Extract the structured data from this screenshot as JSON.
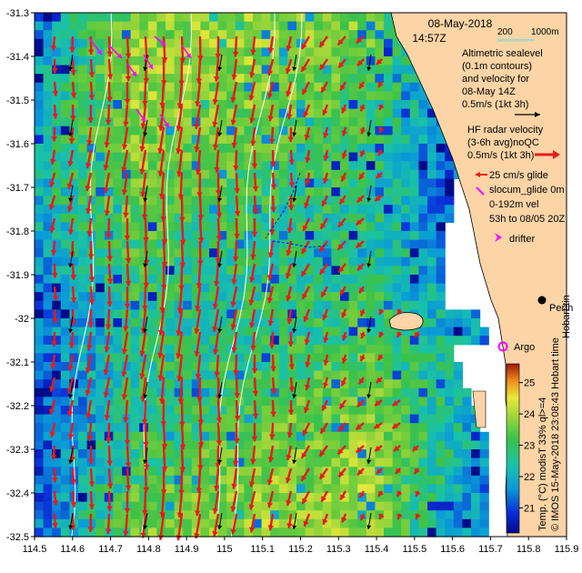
{
  "title": {
    "date": "08-May-2018",
    "time": "14:57Z"
  },
  "depth_legend": {
    "label_200": "200",
    "label_1000": "1000m",
    "color_200": "#ffffff",
    "color_1000": "#7fd6d6"
  },
  "legend": {
    "altimetric_lines": [
      "Altimetric sealevel",
      "(0.1m contours)",
      "and velocity for",
      "08-May 14Z",
      "0.5m/s (1kt 3h)"
    ],
    "hf_lines": [
      "HF radar velocity",
      "(3-6h avg)noQC",
      "0.5m/s (1kt 3h)"
    ],
    "glider_lines": [
      "25 cm/s glide",
      "slocum_glide 0m",
      "0-192m vel",
      "53h to 08/05 20Z"
    ],
    "drifter": "drifter",
    "argo": "Argo",
    "perth": "Perth",
    "hobart": "Hobart tin"
  },
  "colorbar": {
    "label": "Temp. (°C) modisT 33% ql>=4",
    "ticks": [
      "25",
      "24",
      "23",
      "22",
      "21"
    ],
    "range": [
      20.2,
      25.6
    ]
  },
  "credit": "© IMOS 15-May-2018 23:08:43 Hobart time",
  "axes": {
    "x_ticks": [
      "114.5",
      "114.6",
      "114.7",
      "114.8",
      "114.9",
      "115",
      "115.1",
      "115.2",
      "115.3",
      "115.4",
      "115.5",
      "115.6",
      "115.7",
      "115.8",
      "115.9"
    ],
    "y_ticks": [
      "-31.3",
      "-31.4",
      "-31.5",
      "-31.6",
      "-31.7",
      "-31.8",
      "-31.9",
      "-32",
      "-32.1",
      "-32.2",
      "-32.3",
      "-32.4",
      "-32.5"
    ],
    "lon_range": [
      114.5,
      115.9
    ],
    "lat_range": [
      -32.5,
      -31.3
    ]
  },
  "colors": {
    "land": "#fcd4a6",
    "hf_arrow": "#e81a1a",
    "alt_arrow": "#000000",
    "glider": "#0a2ad8",
    "drifter": "#ff00ff",
    "argo": "#ff00ff"
  },
  "chart_data": {
    "type": "heatmap",
    "title": "08-May-2018 14:57Z",
    "xlabel": "",
    "ylabel": "",
    "xlim": [
      114.5,
      115.9
    ],
    "ylim": [
      -32.5,
      -31.3
    ],
    "colorbar_label": "Temp. (°C) modisT 33% ql>=4",
    "colorbar_range": [
      20.2,
      25.6
    ]
  }
}
